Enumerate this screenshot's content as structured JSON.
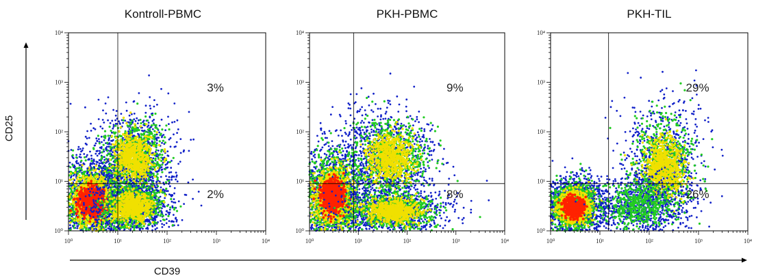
{
  "chart_data": [
    {
      "type": "scatter",
      "title": "Kontroll-PBMC",
      "xscale": "log",
      "yscale": "log",
      "xlim": [
        1,
        10000
      ],
      "ylim": [
        1,
        10000
      ],
      "xticks": [
        "10⁰",
        "10¹",
        "10²",
        "10³",
        "10⁴"
      ],
      "yticks": [
        "10⁰",
        "10¹",
        "10²",
        "10³",
        "10⁴"
      ],
      "gate": {
        "x": 10,
        "y": 9
      },
      "quadrant_percent": {
        "upper_right": "3%",
        "lower_right": "2%"
      },
      "populations": [
        {
          "x": 3,
          "y": 4,
          "sx": 0.32,
          "sy": 0.35,
          "density": "high"
        },
        {
          "x": 22,
          "y": 30,
          "sx": 0.28,
          "sy": 0.35,
          "density": "medium"
        },
        {
          "x": 20,
          "y": 3,
          "sx": 0.3,
          "sy": 0.2,
          "density": "medium"
        }
      ]
    },
    {
      "type": "scatter",
      "title": "PKH-PBMC",
      "xscale": "log",
      "yscale": "log",
      "xlim": [
        1,
        10000
      ],
      "ylim": [
        1,
        10000
      ],
      "xticks": [
        "10⁰",
        "10¹",
        "10²",
        "10³",
        "10⁴"
      ],
      "yticks": [
        "10⁰",
        "10¹",
        "10²",
        "10³",
        "10⁴"
      ],
      "gate": {
        "x": 8,
        "y": 9
      },
      "quadrant_percent": {
        "upper_right": "9%",
        "lower_right": "8%"
      },
      "populations": [
        {
          "x": 3,
          "y": 5,
          "sx": 0.28,
          "sy": 0.4,
          "density": "high"
        },
        {
          "x": 45,
          "y": 30,
          "sx": 0.35,
          "sy": 0.35,
          "density": "medium"
        },
        {
          "x": 50,
          "y": 2.5,
          "sx": 0.4,
          "sy": 0.18,
          "density": "medium"
        }
      ]
    },
    {
      "type": "scatter",
      "title": "PKH-TIL",
      "xscale": "log",
      "yscale": "log",
      "xlim": [
        1,
        10000
      ],
      "ylim": [
        1,
        10000
      ],
      "xticks": [
        "10⁰",
        "10¹",
        "10²",
        "10³",
        "10⁴"
      ],
      "yticks": [
        "10⁰",
        "10¹",
        "10²",
        "10³",
        "10⁴"
      ],
      "gate": {
        "x": 15,
        "y": 9
      },
      "quadrant_percent": {
        "upper_right": "29%",
        "lower_right": "26%"
      },
      "populations": [
        {
          "x": 3,
          "y": 3,
          "sx": 0.22,
          "sy": 0.22,
          "density": "high"
        },
        {
          "x": 200,
          "y": 20,
          "sx": 0.28,
          "sy": 0.45,
          "density": "medium"
        },
        {
          "x": 60,
          "y": 3,
          "sx": 0.3,
          "sy": 0.2,
          "density": "low"
        }
      ]
    }
  ],
  "axes": {
    "xlabel": "CD39",
    "ylabel": "CD25"
  },
  "colors": {
    "density_low": "#1020c8",
    "density_mid": "#22cc22",
    "density_midhigh": "#f0e000",
    "density_high": "#ff2200"
  }
}
